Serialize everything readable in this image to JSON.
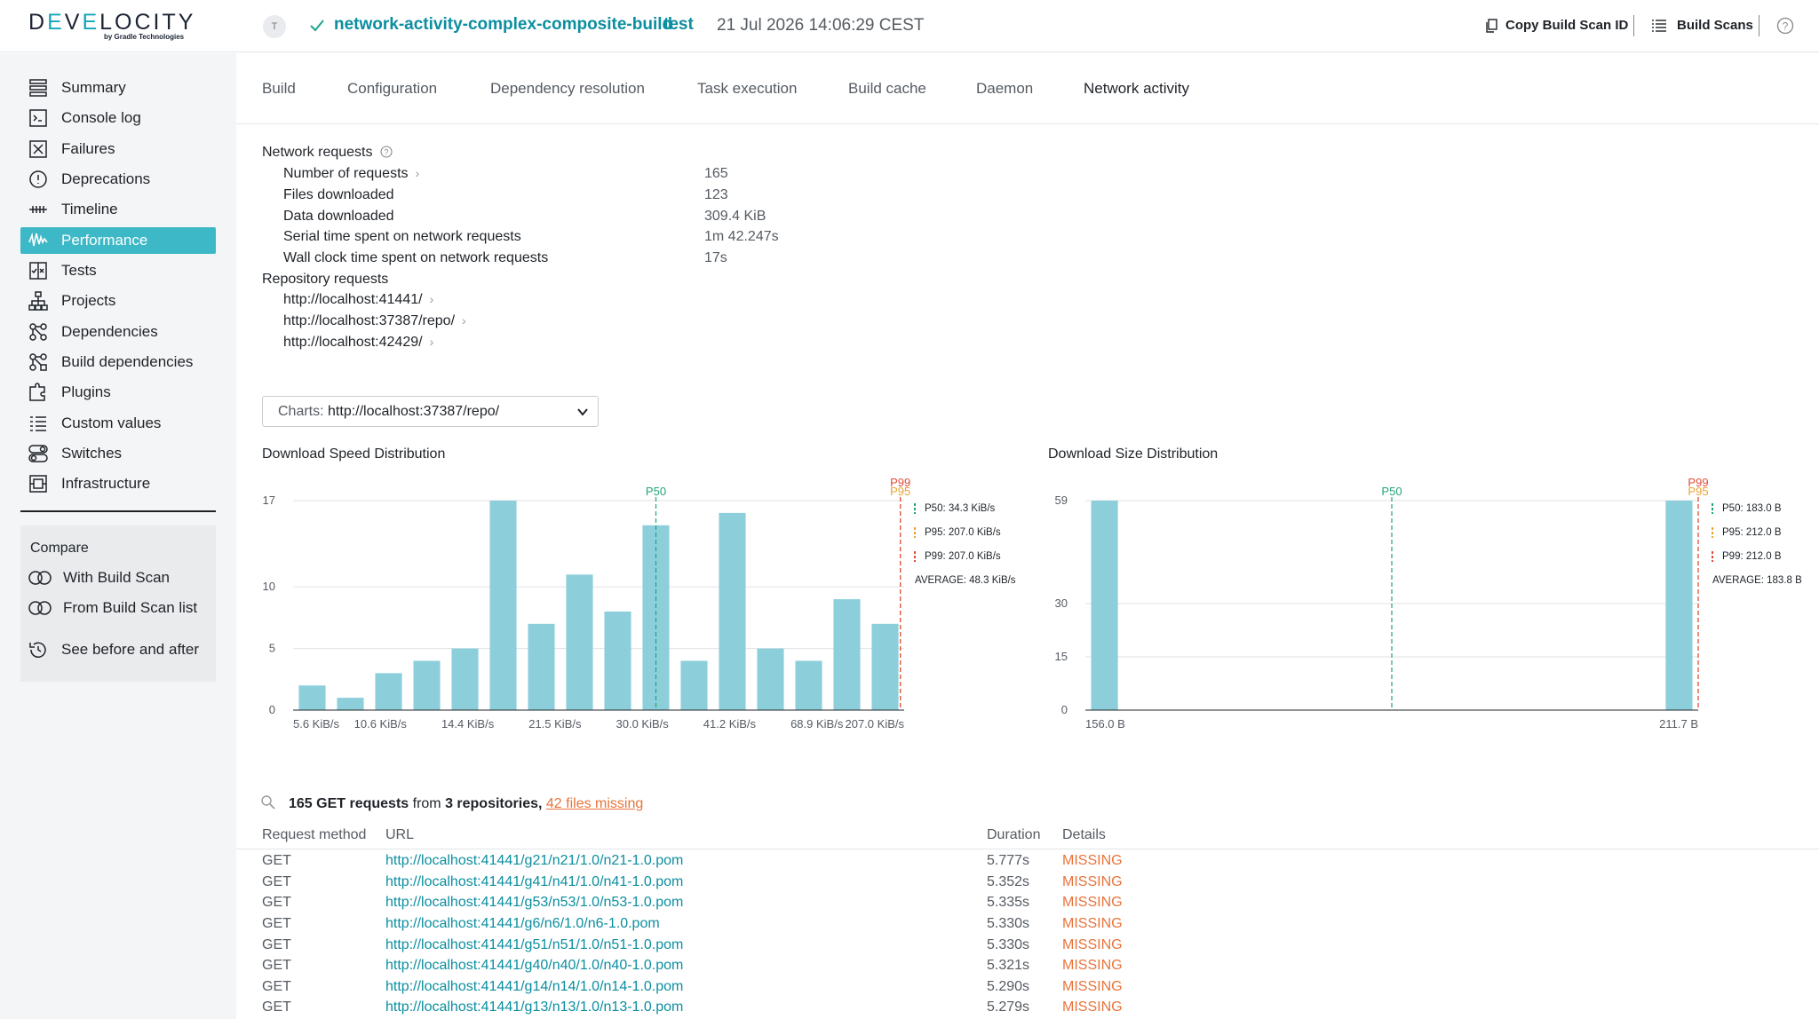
{
  "header": {
    "logo_text_left": "D",
    "logo_text_e": "E",
    "logo_text_mid": "V",
    "logo_text_e2": "E",
    "logo_text_right": "LOCITY",
    "logo_subtitle": "by Gradle Technologies",
    "avatar_initial": "T",
    "project": "network-activity-complex-composite-build",
    "task": "test",
    "date": "21 Jul 2026 14:06:29 CEST",
    "copy_id_label": "Copy Build Scan ID",
    "build_scans_label": "Build Scans"
  },
  "sidebar": {
    "items": [
      {
        "label": "Summary",
        "icon": "summary-icon"
      },
      {
        "label": "Console log",
        "icon": "console-icon"
      },
      {
        "label": "Failures",
        "icon": "failures-icon"
      },
      {
        "label": "Deprecations",
        "icon": "deprecations-icon"
      },
      {
        "label": "Timeline",
        "icon": "timeline-icon"
      },
      {
        "label": "Performance",
        "icon": "performance-icon"
      },
      {
        "label": "Tests",
        "icon": "tests-icon"
      },
      {
        "label": "Projects",
        "icon": "projects-icon"
      },
      {
        "label": "Dependencies",
        "icon": "dependencies-icon"
      },
      {
        "label": "Build dependencies",
        "icon": "build-dependencies-icon"
      },
      {
        "label": "Plugins",
        "icon": "plugins-icon"
      },
      {
        "label": "Custom values",
        "icon": "custom-values-icon"
      },
      {
        "label": "Switches",
        "icon": "switches-icon"
      },
      {
        "label": "Infrastructure",
        "icon": "infrastructure-icon"
      }
    ],
    "compare_title": "Compare",
    "compare_items": [
      {
        "label": "With Build Scan"
      },
      {
        "label": "From Build Scan list"
      }
    ],
    "see_before_after": "See before and after"
  },
  "tabs": [
    "Build",
    "Configuration",
    "Dependency resolution",
    "Task execution",
    "Build cache",
    "Daemon",
    "Network activity"
  ],
  "network": {
    "title": "Network requests",
    "stats": [
      {
        "label": "Number of requests",
        "value": "165"
      },
      {
        "label": "Files downloaded",
        "value": "123"
      },
      {
        "label": "Data downloaded",
        "value": "309.4 KiB"
      },
      {
        "label": "Serial time spent on network requests",
        "value": "1m 42.247s"
      },
      {
        "label": "Wall clock time spent on network requests",
        "value": "17s"
      }
    ],
    "repo_title": "Repository requests",
    "repos": [
      "http://localhost:41441/",
      "http://localhost:37387/repo/",
      "http://localhost:42429/"
    ]
  },
  "charts_select": {
    "prefix": "Charts:",
    "value": "http://localhost:37387/repo/"
  },
  "chart_data": [
    {
      "type": "bar",
      "title": "Download Speed Distribution",
      "y_ticks": [
        0,
        5,
        10,
        17
      ],
      "ylim": [
        0,
        17
      ],
      "values": [
        2,
        1,
        3,
        4,
        5,
        17,
        7,
        11,
        8,
        15,
        4,
        16,
        5,
        4,
        9,
        7
      ],
      "x_tick_labels": [
        "5.6 KiB/s",
        "10.6 KiB/s",
        "14.4 KiB/s",
        "21.5 KiB/s",
        "30.0 KiB/s",
        "41.2 KiB/s",
        "68.9 KiB/s",
        "207.0 KiB/s"
      ],
      "markers": [
        {
          "name": "P50",
          "bin": 9,
          "color": "#23a27a"
        },
        {
          "name": "P95",
          "bin": 15.4,
          "color": "#e9a332"
        },
        {
          "name": "P99",
          "bin": 15.4,
          "color": "#e14b3b"
        }
      ],
      "legend": [
        {
          "text": "P50: 34.3 KiB/s",
          "color": "#23a27a"
        },
        {
          "text": "P95: 207.0 KiB/s",
          "color": "#e9a332"
        },
        {
          "text": "P99: 207.0 KiB/s",
          "color": "#e14b3b"
        },
        {
          "text": "AVERAGE: 48.3 KiB/s",
          "color": null
        }
      ],
      "bar_color": "#8ccfdb"
    },
    {
      "type": "bar",
      "title": "Download Size Distribution",
      "y_ticks": [
        0,
        15,
        30,
        59
      ],
      "ylim": [
        0,
        59
      ],
      "values": [
        59,
        0,
        0,
        0,
        0,
        0,
        0,
        0,
        0,
        0,
        0,
        0,
        0,
        0,
        0,
        59
      ],
      "x_tick_labels": [
        "156.0 B",
        "211.7 B"
      ],
      "markers": [
        {
          "name": "P50",
          "bin": 7.5,
          "color": "#23a27a"
        },
        {
          "name": "P95",
          "bin": 15.5,
          "color": "#e9a332"
        },
        {
          "name": "P99",
          "bin": 15.5,
          "color": "#e14b3b"
        }
      ],
      "legend": [
        {
          "text": "P50: 183.0 B",
          "color": "#23a27a"
        },
        {
          "text": "P95: 212.0 B",
          "color": "#e9a332"
        },
        {
          "text": "P99: 212.0 B",
          "color": "#e14b3b"
        },
        {
          "text": "AVERAGE: 183.8 B",
          "color": null
        }
      ],
      "bar_color": "#8ccfdb"
    }
  ],
  "requests": {
    "summary_count": "165 GET requests",
    "summary_from": " from ",
    "summary_repos": "3 repositories,",
    "summary_missing": "42 files missing",
    "headers": {
      "method": "Request method",
      "url": "URL",
      "duration": "Duration",
      "details": "Details"
    },
    "rows": [
      {
        "method": "GET",
        "url": "http://localhost:41441/g21/n21/1.0/n21-1.0.pom",
        "duration": "5.777s",
        "details": "MISSING"
      },
      {
        "method": "GET",
        "url": "http://localhost:41441/g41/n41/1.0/n41-1.0.pom",
        "duration": "5.352s",
        "details": "MISSING"
      },
      {
        "method": "GET",
        "url": "http://localhost:41441/g53/n53/1.0/n53-1.0.pom",
        "duration": "5.335s",
        "details": "MISSING"
      },
      {
        "method": "GET",
        "url": "http://localhost:41441/g6/n6/1.0/n6-1.0.pom",
        "duration": "5.330s",
        "details": "MISSING"
      },
      {
        "method": "GET",
        "url": "http://localhost:41441/g51/n51/1.0/n51-1.0.pom",
        "duration": "5.330s",
        "details": "MISSING"
      },
      {
        "method": "GET",
        "url": "http://localhost:41441/g40/n40/1.0/n40-1.0.pom",
        "duration": "5.321s",
        "details": "MISSING"
      },
      {
        "method": "GET",
        "url": "http://localhost:41441/g14/n14/1.0/n14-1.0.pom",
        "duration": "5.290s",
        "details": "MISSING"
      },
      {
        "method": "GET",
        "url": "http://localhost:41441/g13/n13/1.0/n13-1.0.pom",
        "duration": "5.279s",
        "details": "MISSING"
      }
    ]
  }
}
